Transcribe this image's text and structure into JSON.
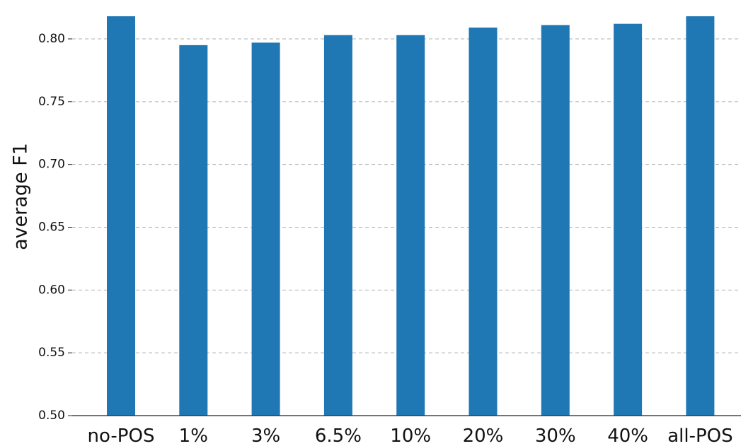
{
  "chart_data": {
    "type": "bar",
    "title": "",
    "xlabel": "",
    "ylabel": "average F1",
    "categories": [
      "no-POS",
      "1%",
      "3%",
      "6.5%",
      "10%",
      "20%",
      "30%",
      "40%",
      "all-POS"
    ],
    "values": [
      0.818,
      0.795,
      0.797,
      0.803,
      0.803,
      0.809,
      0.811,
      0.812,
      0.818
    ],
    "ylim": [
      0.5,
      0.82
    ],
    "yticks": [
      0.5,
      0.55,
      0.6,
      0.65,
      0.7,
      0.75,
      0.8
    ],
    "ytick_labels": [
      "0.50",
      "0.55",
      "0.60",
      "0.65",
      "0.70",
      "0.75",
      "0.80"
    ],
    "grid": "y-dashed",
    "legend": "none",
    "bar_color": "#1f77b4",
    "grid_color": "#b0b0b0"
  }
}
